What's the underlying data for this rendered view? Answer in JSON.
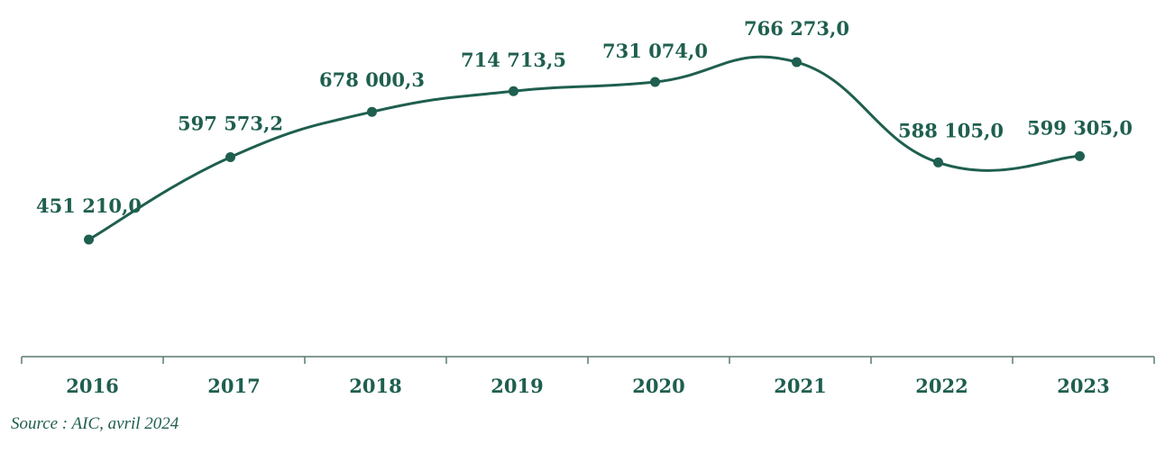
{
  "colors": {
    "series": "#1f5f4f",
    "axis": "#5a7a70"
  },
  "chart_data": {
    "type": "line",
    "title": "",
    "xlabel": "",
    "ylabel": "",
    "categories": [
      "2016",
      "2017",
      "2018",
      "2019",
      "2020",
      "2021",
      "2022",
      "2023"
    ],
    "series": [
      {
        "values": [
          451210.0,
          597573.2,
          678000.3,
          714713.5,
          731074.0,
          766273.0,
          588105.0,
          599305.0
        ],
        "labels": [
          "451 210,0",
          "597 573,2",
          "678 000,3",
          "714 713,5",
          "731 074,0",
          "766 273,0",
          "588 105,0",
          "599 305,0"
        ]
      }
    ],
    "grid": false,
    "legend": "none",
    "source": "Source : AIC, avril 2024"
  }
}
